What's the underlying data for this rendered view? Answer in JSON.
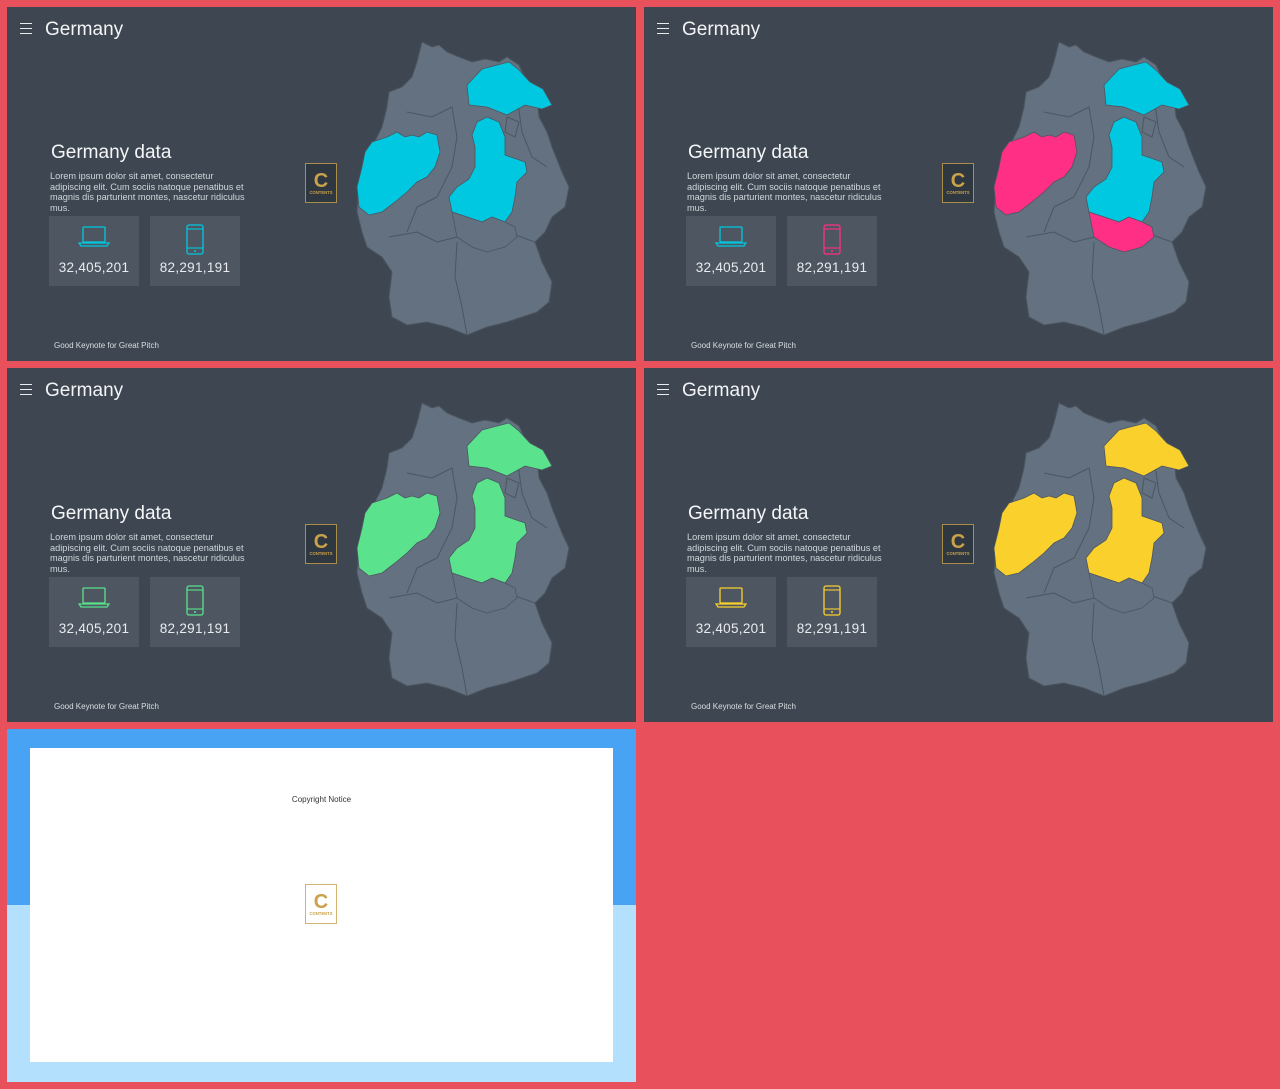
{
  "slides": [
    {
      "title": "Germany",
      "data_title": "Germany data",
      "description": "Lorem ipsum dolor sit amet, consectetur adipiscing elit. Cum sociis natoque penatibus et magnis dis parturient montes, nascetur ridiculus mus.",
      "stat1": "32,405,201",
      "stat2": "82,291,191",
      "footer": "Good Keynote for Great Pitch",
      "accent": "#00c8e0"
    },
    {
      "title": "Germany",
      "data_title": "Germany data",
      "description": "Lorem ipsum dolor sit amet, consectetur adipiscing elit. Cum sociis natoque penatibus et magnis dis parturient montes, nascetur ridiculus mus.",
      "stat1": "32,405,201",
      "stat2": "82,291,191",
      "footer": "Good Keynote for Great Pitch",
      "accent": "#ff2f86",
      "accent2": "#00c8e0"
    },
    {
      "title": "Germany",
      "data_title": "Germany data",
      "description": "Lorem ipsum dolor sit amet, consectetur adipiscing elit. Cum sociis natoque penatibus et magnis dis parturient montes, nascetur ridiculus mus.",
      "stat1": "32,405,201",
      "stat2": "82,291,191",
      "footer": "Good Keynote for Great Pitch",
      "accent": "#5ae38c"
    },
    {
      "title": "Germany",
      "data_title": "Germany data",
      "description": "Lorem ipsum dolor sit amet, consectetur adipiscing elit. Cum sociis natoque penatibus et magnis dis parturient montes, nascetur ridiculus mus.",
      "stat1": "32,405,201",
      "stat2": "82,291,191",
      "footer": "Good Keynote for Great Pitch",
      "accent": "#fad02c"
    }
  ],
  "copyright": {
    "label": "Copyright Notice"
  },
  "logo": {
    "letter": "C",
    "brand": "CONTENTS"
  },
  "icons": {
    "laptop": "laptop-icon",
    "phone": "phone-icon",
    "menu": "menu-icon"
  }
}
